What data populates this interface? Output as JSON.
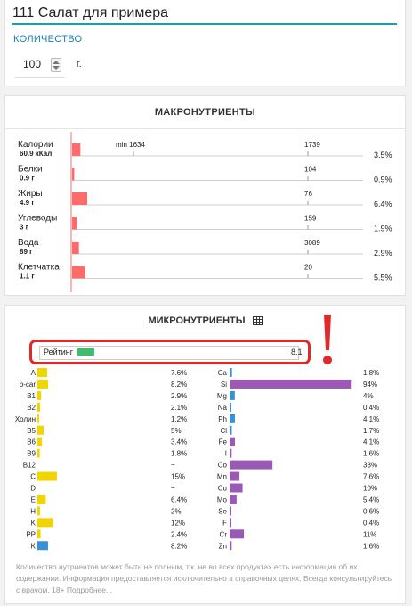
{
  "recipe": {
    "title": "111 Салат для примера"
  },
  "quantity": {
    "label": "КОЛИЧЕСТВО",
    "value": "100",
    "unit": "г."
  },
  "macro": {
    "heading": "МАКРОНУТРИЕНТЫ",
    "rows": [
      {
        "name": "Калории",
        "amount": "60.9 кКал",
        "norm": "1739",
        "min": "min 1634",
        "percent": "3.5%",
        "fraction": 0.035
      },
      {
        "name": "Белки",
        "amount": "0.9 г",
        "norm": "104",
        "min": "",
        "percent": "0.9%",
        "fraction": 0.009
      },
      {
        "name": "Жиры",
        "amount": "4.9 г",
        "norm": "76",
        "min": "",
        "percent": "6.4%",
        "fraction": 0.064
      },
      {
        "name": "Углеводы",
        "amount": "3 г",
        "norm": "159",
        "min": "",
        "percent": "1.9%",
        "fraction": 0.019
      },
      {
        "name": "Вода",
        "amount": "89 г",
        "norm": "3089",
        "min": "",
        "percent": "2.9%",
        "fraction": 0.029
      },
      {
        "name": "Клетчатка",
        "amount": "1.1 г",
        "norm": "20",
        "min": "",
        "percent": "5.5%",
        "fraction": 0.055
      }
    ]
  },
  "micro": {
    "heading": "МИКРОНУТРИЕНТЫ",
    "rating": {
      "label": "Рейтинг",
      "value": "8.1",
      "fraction": 0.081
    },
    "vitamins": [
      {
        "name": "A",
        "percent": "7.6%",
        "fraction": 0.076,
        "color": "#f2d400"
      },
      {
        "name": "b-car",
        "percent": "8.2%",
        "fraction": 0.082,
        "color": "#f2d400"
      },
      {
        "name": "B1",
        "percent": "2.9%",
        "fraction": 0.029,
        "color": "#f2d400"
      },
      {
        "name": "B2",
        "percent": "2.1%",
        "fraction": 0.021,
        "color": "#f2d400"
      },
      {
        "name": "Холин",
        "percent": "1.2%",
        "fraction": 0.012,
        "color": "#f2d400"
      },
      {
        "name": "B5",
        "percent": "5%",
        "fraction": 0.05,
        "color": "#f2d400"
      },
      {
        "name": "B6",
        "percent": "3.4%",
        "fraction": 0.034,
        "color": "#f2d400"
      },
      {
        "name": "B9",
        "percent": "1.8%",
        "fraction": 0.018,
        "color": "#f2d400"
      },
      {
        "name": "B12",
        "percent": "~",
        "fraction": 0,
        "color": "#f2d400"
      },
      {
        "name": "C",
        "percent": "15%",
        "fraction": 0.15,
        "color": "#f2d400"
      },
      {
        "name": "D",
        "percent": "~",
        "fraction": 0,
        "color": "#f2d400"
      },
      {
        "name": "E",
        "percent": "6.4%",
        "fraction": 0.064,
        "color": "#f2d400"
      },
      {
        "name": "H",
        "percent": "2%",
        "fraction": 0.02,
        "color": "#f2d400"
      },
      {
        "name": "K",
        "percent": "12%",
        "fraction": 0.12,
        "color": "#f2d400"
      },
      {
        "name": "PP",
        "percent": "2.4%",
        "fraction": 0.024,
        "color": "#f2d400"
      },
      {
        "name": "K",
        "percent": "8.2%",
        "fraction": 0.082,
        "color": "#3b8fd4"
      }
    ],
    "minerals": [
      {
        "name": "Ca",
        "percent": "1.8%",
        "fraction": 0.018,
        "color": "#3b8fd4"
      },
      {
        "name": "Si",
        "percent": "94%",
        "fraction": 0.94,
        "color": "#9b59b6"
      },
      {
        "name": "Mg",
        "percent": "4%",
        "fraction": 0.04,
        "color": "#3b8fd4"
      },
      {
        "name": "Na",
        "percent": "0.4%",
        "fraction": 0.004,
        "color": "#3b8fd4"
      },
      {
        "name": "Ph",
        "percent": "4.1%",
        "fraction": 0.041,
        "color": "#3b8fd4"
      },
      {
        "name": "Cl",
        "percent": "1.7%",
        "fraction": 0.017,
        "color": "#3b8fd4"
      },
      {
        "name": "Fe",
        "percent": "4.1%",
        "fraction": 0.041,
        "color": "#9b59b6"
      },
      {
        "name": "I",
        "percent": "1.6%",
        "fraction": 0.016,
        "color": "#9b59b6"
      },
      {
        "name": "Co",
        "percent": "33%",
        "fraction": 0.33,
        "color": "#9b59b6"
      },
      {
        "name": "Mn",
        "percent": "7.6%",
        "fraction": 0.076,
        "color": "#9b59b6"
      },
      {
        "name": "Cu",
        "percent": "10%",
        "fraction": 0.1,
        "color": "#9b59b6"
      },
      {
        "name": "Mo",
        "percent": "5.4%",
        "fraction": 0.054,
        "color": "#9b59b6"
      },
      {
        "name": "Se",
        "percent": "0.6%",
        "fraction": 0.006,
        "color": "#9b59b6"
      },
      {
        "name": "F",
        "percent": "0.4%",
        "fraction": 0.004,
        "color": "#9b59b6"
      },
      {
        "name": "Cr",
        "percent": "11%",
        "fraction": 0.11,
        "color": "#9b59b6"
      },
      {
        "name": "Zn",
        "percent": "1.6%",
        "fraction": 0.016,
        "color": "#9b59b6"
      }
    ]
  },
  "footnote": "Количество нутриентов может быть не полным, т.к. не во всех продуктах есть информация об их содержании. Информация предоставляется исключительно в справочных целях. Всегда консультируйтесь с врачом. 18+ Подробнее...",
  "colors": {
    "accent": "#19a1a8",
    "macro_bar": "#ff6b6b",
    "rating_bar": "#3cbf6a",
    "highlight": "#e02a2a"
  }
}
